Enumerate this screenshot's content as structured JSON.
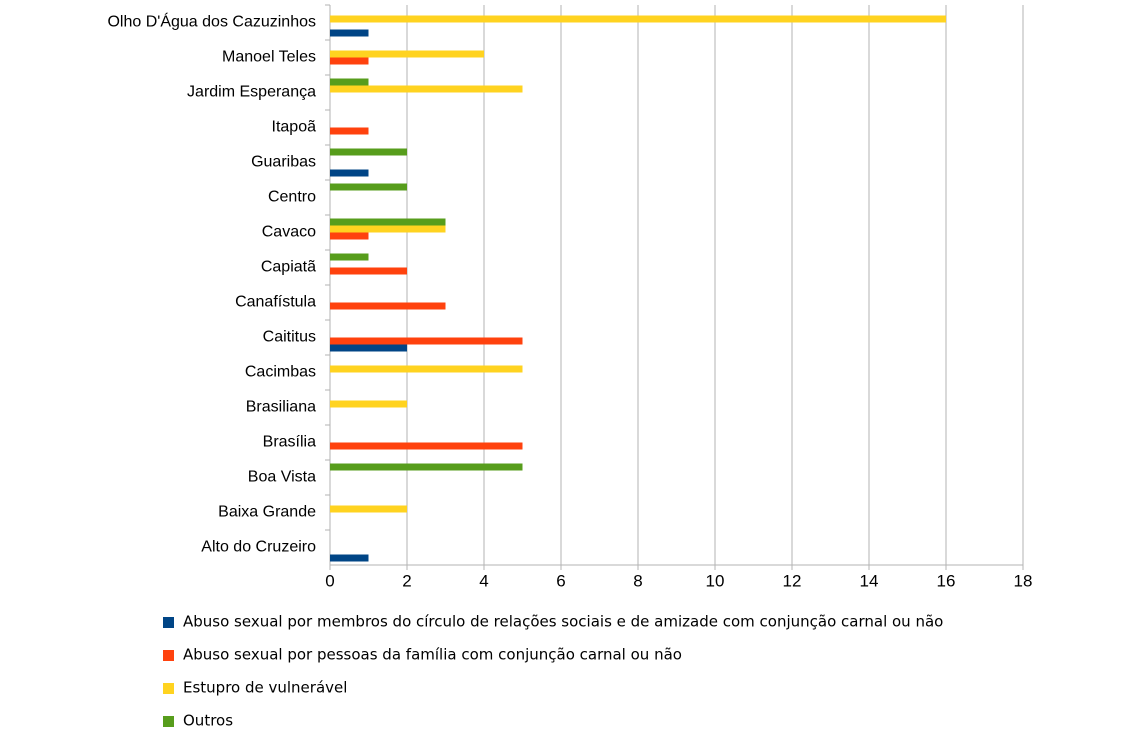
{
  "chart_data": {
    "type": "hbar",
    "categories": [
      "Olho D'Água dos Cazuzinhos",
      "Manoel Teles",
      "Jardim Esperança",
      "Itapoã",
      "Guaribas",
      "Centro",
      "Cavaco",
      "Capiatã",
      "Canafístula",
      "Caititus",
      "Cacimbas",
      "Brasiliana",
      "Brasília",
      "Boa Vista",
      "Baixa Grande",
      "Alto do Cruzeiro"
    ],
    "series": [
      {
        "name": "Abuso sexual por membros do círculo de relações sociais e de amizade com conjunção carnal ou não",
        "color": "#004586",
        "values": [
          1,
          0,
          0,
          0,
          1,
          0,
          0,
          0,
          0,
          2,
          0,
          0,
          0,
          0,
          0,
          1
        ]
      },
      {
        "name": "Abuso sexual por pessoas da família com conjunção carnal ou não",
        "color": "#ff420e",
        "values": [
          0,
          1,
          0,
          1,
          0,
          0,
          1,
          2,
          3,
          5,
          0,
          0,
          5,
          0,
          0,
          0
        ]
      },
      {
        "name": "Estupro de vulnerável",
        "color": "#ffd320",
        "values": [
          16,
          4,
          5,
          0,
          0,
          0,
          3,
          0,
          0,
          0,
          5,
          2,
          0,
          0,
          2,
          0
        ]
      },
      {
        "name": "Outros",
        "color": "#579d1c",
        "values": [
          0,
          0,
          1,
          0,
          2,
          2,
          3,
          1,
          0,
          0,
          0,
          0,
          0,
          5,
          0,
          0
        ]
      }
    ],
    "xlim": [
      0,
      18
    ],
    "xticks": [
      0,
      2,
      4,
      6,
      8,
      10,
      12,
      14,
      16,
      18
    ],
    "grid": true
  }
}
